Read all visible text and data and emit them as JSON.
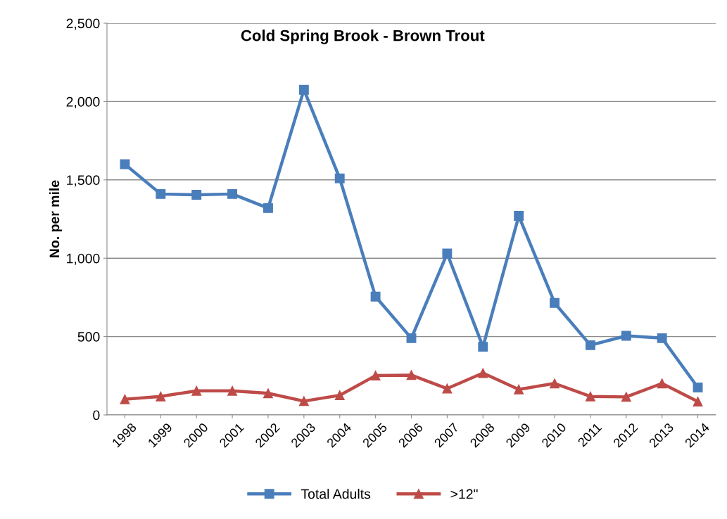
{
  "chart_data": {
    "type": "line",
    "title": "Cold Spring Brook - Brown Trout",
    "ylabel": "No. per mile",
    "categories": [
      "1998",
      "1999",
      "2000",
      "2001",
      "2002",
      "2003",
      "2004",
      "2005",
      "2006",
      "2007",
      "2008",
      "2009",
      "2010",
      "2011",
      "2012",
      "2013",
      "2014"
    ],
    "series": [
      {
        "name": "Total Adults",
        "color": "#4a7ebb",
        "marker": "square",
        "values": [
          1600,
          1410,
          1405,
          1410,
          1320,
          2075,
          1510,
          755,
          490,
          1030,
          435,
          1270,
          715,
          445,
          505,
          490,
          175
        ]
      },
      {
        "name": ">12\"",
        "color": "#be4b48",
        "marker": "triangle",
        "values": [
          100,
          118,
          154,
          154,
          138,
          88,
          125,
          251,
          254,
          168,
          267,
          163,
          201,
          118,
          115,
          201,
          85
        ]
      }
    ],
    "ylim": [
      0,
      2500
    ],
    "yticks": [
      {
        "value": 0,
        "label": "0"
      },
      {
        "value": 500,
        "label": "500"
      },
      {
        "value": 1000,
        "label": "1,000"
      },
      {
        "value": 1500,
        "label": "1,500"
      },
      {
        "value": 2000,
        "label": "2,000"
      },
      {
        "value": 2500,
        "label": "2,500"
      }
    ],
    "grid": "y",
    "legend": "bottom",
    "line_style": "solid"
  }
}
